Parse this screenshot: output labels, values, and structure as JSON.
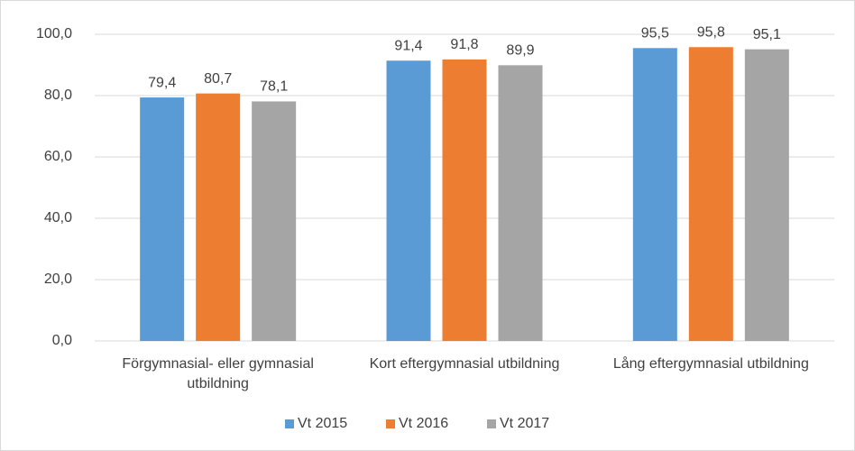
{
  "chart_data": {
    "type": "bar",
    "categories": [
      "Förgymnasial- eller gymnasial utbildning",
      "Kort eftergymnasial utbildning",
      "Lång eftergymnasial utbildning"
    ],
    "series": [
      {
        "name": "Vt 2015",
        "color": "#5b9bd5",
        "values": [
          79.4,
          91.4,
          95.5
        ],
        "value_labels": [
          "79,4",
          "91,4",
          "95,5"
        ]
      },
      {
        "name": "Vt 2016",
        "color": "#ed7d31",
        "values": [
          80.7,
          91.8,
          95.8
        ],
        "value_labels": [
          "80,7",
          "91,8",
          "95,8"
        ]
      },
      {
        "name": "Vt 2017",
        "color": "#a5a5a5",
        "values": [
          78.1,
          89.9,
          95.1
        ],
        "value_labels": [
          "78,1",
          "89,9",
          "95,1"
        ]
      }
    ],
    "ylim": [
      0,
      100
    ],
    "yticks": [
      {
        "value": 0,
        "label": "0,0"
      },
      {
        "value": 20,
        "label": "20,0"
      },
      {
        "value": 40,
        "label": "40,0"
      },
      {
        "value": 60,
        "label": "60,0"
      },
      {
        "value": 80,
        "label": "80,0"
      },
      {
        "value": 100,
        "label": "100,0"
      }
    ],
    "grid": true,
    "legend": "bottom"
  }
}
